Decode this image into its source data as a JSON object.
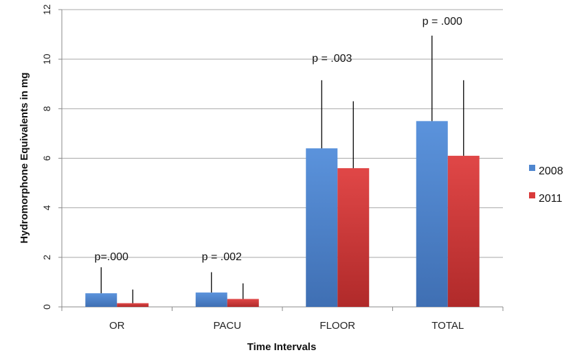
{
  "chart_data": {
    "type": "bar",
    "title": "",
    "xlabel": "Time Intervals",
    "ylabel": "Hydromorphone Equivalents in mg",
    "ylim": [
      0,
      12
    ],
    "yticks": [
      "0",
      "2",
      "4",
      "6",
      "8",
      "10",
      "12"
    ],
    "ytick_values": [
      0,
      2,
      4,
      6,
      8,
      10,
      12
    ],
    "categories": [
      "OR",
      "PACU",
      "FLOOR",
      "TOTAL"
    ],
    "series": [
      {
        "name": "2008",
        "color": "#4f86cf",
        "values": [
          0.55,
          0.58,
          6.4,
          7.5
        ],
        "error_upper": [
          1.6,
          1.4,
          9.15,
          10.95
        ]
      },
      {
        "name": "2011",
        "color": "#d93a3a",
        "values": [
          0.15,
          0.32,
          5.6,
          6.1
        ],
        "error_upper": [
          0.7,
          0.95,
          8.3,
          9.15
        ]
      }
    ],
    "annotations": [
      {
        "category": "OR",
        "text": "p=.000",
        "y": 2.0
      },
      {
        "category": "PACU",
        "text": "p = .002",
        "y": 2.0
      },
      {
        "category": "FLOOR",
        "text": "p = .003",
        "y": 10.0
      },
      {
        "category": "TOTAL",
        "text": "p = .000",
        "y": 11.5
      }
    ],
    "grid": true,
    "legend_position": "right"
  }
}
